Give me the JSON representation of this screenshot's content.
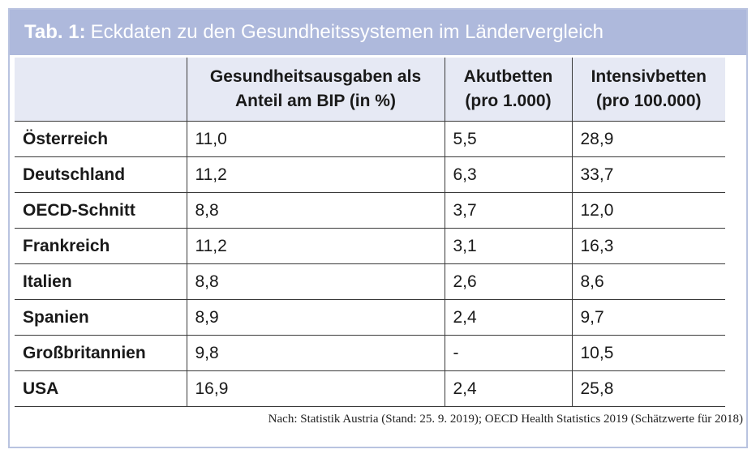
{
  "title": {
    "label": "Tab. 1:",
    "text": "Eckdaten zu den Gesundheitssystemen im Ländervergleich"
  },
  "table": {
    "headers": [
      "",
      "Gesundheitsausgaben als Anteil am BIP (in %)",
      "Akutbetten (pro 1.000)",
      "Intensivbetten (pro 100.000)"
    ],
    "header_lines": [
      [],
      [
        "Gesundheitsausgaben als",
        "Anteil am BIP (in %)"
      ],
      [
        "Akutbetten",
        "(pro 1.000)"
      ],
      [
        "Intensivbetten",
        "(pro 100.000)"
      ]
    ],
    "rows": [
      [
        "Österreich",
        "11,0",
        "5,5",
        "28,9"
      ],
      [
        "Deutschland",
        "11,2",
        "6,3",
        "33,7"
      ],
      [
        "OECD-Schnitt",
        "8,8",
        "3,7",
        "12,0"
      ],
      [
        "Frankreich",
        "11,2",
        "3,1",
        "16,3"
      ],
      [
        "Italien",
        "8,8",
        "2,6",
        "8,6"
      ],
      [
        "Spanien",
        "8,9",
        "2,4",
        "9,7"
      ],
      [
        "Großbritannien",
        "9,8",
        "-",
        "10,5"
      ],
      [
        "USA",
        "16,9",
        "2,4",
        "25,8"
      ]
    ]
  },
  "source": "Nach: Statistik Austria (Stand: 25. 9. 2019); OECD Health Statistics 2019 (Schätzwerte für 2018)",
  "colors": {
    "title_bar": "#aeb9dc",
    "header_row": "#e6e9f4",
    "frame_border": "#b9c3e0"
  }
}
